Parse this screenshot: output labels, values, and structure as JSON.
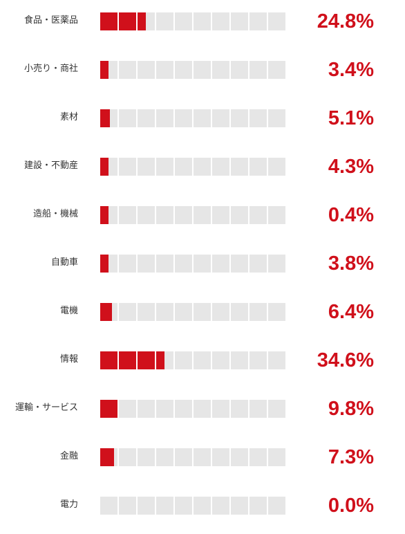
{
  "chart_data": {
    "type": "bar",
    "orientation": "horizontal",
    "title": "",
    "xlabel": "",
    "ylabel": "",
    "xlim": [
      0,
      100
    ],
    "cells_per_bar": 10,
    "unit": "%",
    "color": "#d0101b",
    "empty_color": "#e6e6e6",
    "categories": [
      "食品・医薬品",
      "小売り・商社",
      "素材",
      "建設・不動産",
      "造船・機械",
      "自動車",
      "電機",
      "情報",
      "運輸・サービス",
      "金融",
      "電力"
    ],
    "values": [
      24.8,
      3.4,
      5.1,
      4.3,
      0.4,
      3.8,
      6.4,
      34.6,
      9.8,
      7.3,
      0.0
    ],
    "value_labels": [
      "24.8%",
      "3.4%",
      "5.1%",
      "4.3%",
      "0.4%",
      "3.8%",
      "6.4%",
      "34.6%",
      "9.8%",
      "7.3%",
      "0.0%"
    ]
  }
}
